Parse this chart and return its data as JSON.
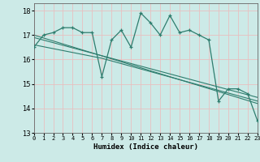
{
  "xlabel": "Humidex (Indice chaleur)",
  "ylabel": "",
  "bg_color": "#cceae7",
  "grid_color_major": "#e8c8c8",
  "grid_color_minor": "#ffffff",
  "line_color": "#2e7d6e",
  "xlim": [
    0,
    23
  ],
  "ylim": [
    13,
    18.3
  ],
  "yticks": [
    13,
    14,
    15,
    16,
    17,
    18
  ],
  "xticks": [
    0,
    1,
    2,
    3,
    4,
    5,
    6,
    7,
    8,
    9,
    10,
    11,
    12,
    13,
    14,
    15,
    16,
    17,
    18,
    19,
    20,
    21,
    22,
    23
  ],
  "main_x": [
    0,
    1,
    2,
    3,
    4,
    5,
    6,
    7,
    8,
    9,
    10,
    11,
    12,
    13,
    14,
    15,
    16,
    17,
    18,
    19,
    20,
    21,
    22,
    23
  ],
  "main_y": [
    16.5,
    17.0,
    17.1,
    17.3,
    17.3,
    17.1,
    17.1,
    15.3,
    16.8,
    17.2,
    16.5,
    17.9,
    17.5,
    17.0,
    17.8,
    17.1,
    17.2,
    17.0,
    16.8,
    14.3,
    14.8,
    14.8,
    14.6,
    13.5
  ],
  "line2_x": [
    0,
    23
  ],
  "line2_y": [
    17.0,
    14.2
  ],
  "line3_x": [
    0,
    23
  ],
  "line3_y": [
    16.9,
    14.45
  ],
  "line4_x": [
    0,
    7,
    23
  ],
  "line4_y": [
    16.6,
    16.05,
    14.3
  ]
}
